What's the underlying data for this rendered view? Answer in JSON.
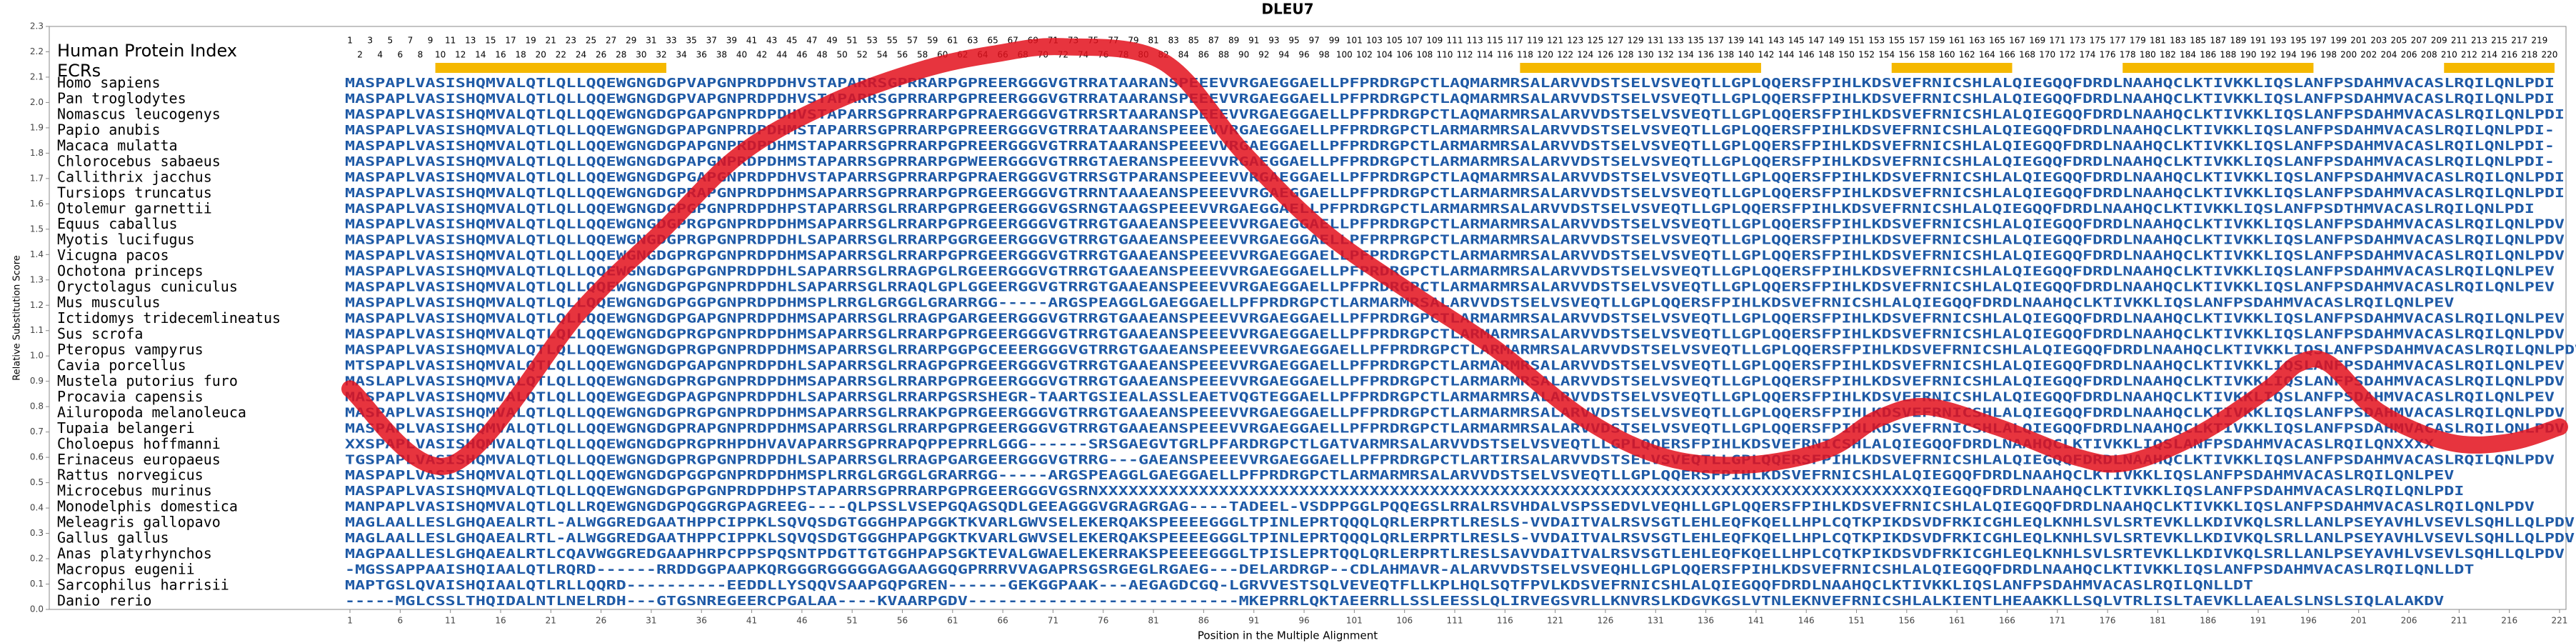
{
  "chart_data": {
    "type": "line",
    "title": "DLEU7",
    "ylabel": "Relative Substitution Score",
    "xlabel": "Position in the Multiple Alignment",
    "index_label": "Human Protein Index",
    "ecr_label": "ECRs",
    "ylim": [
      0,
      2.3
    ],
    "yticks": [
      {
        "value": 0,
        "label": "0.0"
      },
      0.1,
      0.2,
      0.3,
      0.4,
      0.5,
      0.6,
      0.7,
      0.8,
      0.9,
      {
        "value": 1,
        "label": "1.0"
      },
      1.1,
      1.2,
      1.3,
      1.4,
      1.5,
      1.6,
      1.7,
      1.8,
      1.9,
      {
        "value": 2,
        "label": "2.0"
      },
      2.1,
      2.2,
      2.3
    ],
    "xlim": [
      0.5,
      221.5
    ],
    "xticks": [
      1,
      6,
      11,
      16,
      21,
      26,
      31,
      36,
      41,
      46,
      51,
      56,
      61,
      66,
      71,
      76,
      81,
      86,
      91,
      96,
      101,
      106,
      111,
      116,
      121,
      126,
      131,
      136,
      141,
      146,
      151,
      156,
      161,
      166,
      171,
      176,
      181,
      186,
      191,
      196,
      201,
      206,
      211,
      216,
      221
    ],
    "color": "#e3101c",
    "x": [
      1,
      11,
      24,
      32,
      40,
      49,
      58,
      65,
      72,
      82,
      90,
      98,
      107,
      115,
      124,
      132,
      140,
      148,
      153,
      158,
      165,
      173,
      178,
      185,
      192,
      195,
      198,
      203,
      210,
      216,
      221
    ],
    "values": [
      0.87,
      0.57,
      1.18,
      1.49,
      1.8,
      2.0,
      2.13,
      2.19,
      2.22,
      2.16,
      1.8,
      1.49,
      1.24,
      1.03,
      0.75,
      0.6,
      0.57,
      0.63,
      0.75,
      0.8,
      0.72,
      0.6,
      0.58,
      0.69,
      0.87,
      0.97,
      0.97,
      0.78,
      0.66,
      0.66,
      0.72
    ],
    "ecr_color": "#f5b800",
    "ecrs": [
      [
        10,
        32
      ],
      [
        118,
        141
      ],
      [
        155,
        166
      ],
      [
        178,
        196
      ],
      [
        210,
        220
      ]
    ],
    "human_index": [
      1,
      2,
      3,
      4,
      5,
      6,
      7,
      8,
      9,
      10,
      11,
      12,
      13,
      14,
      15,
      16,
      17,
      18,
      19,
      20,
      21,
      22,
      23,
      24,
      25,
      26,
      27,
      28,
      29,
      30,
      31,
      32,
      33,
      34,
      35,
      36,
      37,
      38,
      39,
      40,
      41,
      42,
      43,
      44,
      45,
      46,
      47,
      48,
      49,
      50,
      51,
      52,
      53,
      54,
      55,
      56,
      57,
      58,
      59,
      60,
      61,
      62,
      63,
      64,
      65,
      66,
      67,
      68,
      69,
      70,
      71,
      72,
      73,
      74,
      75,
      76,
      77,
      78,
      79,
      80,
      81,
      82,
      83,
      84,
      85,
      86,
      87,
      88,
      89,
      90,
      91,
      92,
      93,
      94,
      95,
      96,
      97,
      98,
      99,
      100,
      101,
      102,
      103,
      104,
      105,
      106,
      107,
      108,
      109,
      110,
      111,
      112,
      113,
      114,
      115,
      116,
      117,
      118,
      119,
      120,
      121,
      122,
      123,
      124,
      125,
      126,
      127,
      128,
      129,
      130,
      131,
      132,
      133,
      134,
      135,
      136,
      137,
      138,
      139,
      140,
      141,
      142,
      143,
      144,
      145,
      146,
      147,
      148,
      149,
      150,
      151,
      152,
      153,
      154,
      155,
      156,
      157,
      158,
      159,
      160,
      161,
      162,
      163,
      164,
      165,
      166,
      167,
      168,
      169,
      170,
      171,
      172,
      173,
      174,
      175,
      176,
      177,
      178,
      179,
      180,
      181,
      182,
      183,
      184,
      185,
      186,
      187,
      188,
      189,
      190,
      191,
      192,
      193,
      194,
      195,
      196,
      197,
      198,
      199,
      200,
      201,
      202,
      203,
      204,
      205,
      206,
      207,
      208,
      209,
      210,
      211,
      212,
      213,
      214,
      215,
      216,
      217,
      218,
      219,
      220
    ],
    "sequence_color": "#1f5aa6",
    "rows": [
      {
        "species": "Homo sapiens",
        "sequence": "MASPAPLVASISHQMVALQTLQLLQQEWGNGDGPVAPGNPRDPDHVSTAPARRSGPRRARPGPREERGGGVGTRRATAARANSPEEEVVRGAEGGAELLPFPRDRGPCTLAQMARMRSALARVVDSTSELVSVEQTLLGPLQQERSFPIHLKDSVEFRNICSHLALQIEGQQFDRDLNAAHQCLKTIVKKLIQSLANFPSDAHMVACASLRQILQNLPDI"
      },
      {
        "species": "Pan troglodytes",
        "sequence": "MASPAPLVASISHQMVALQTLQLLQQEWGNGDGPVAPGNPRDPDHVSTAPARRSGPRRARPGPREERGGGVGTRRATAARANSPEEEVVRGAEGGAELLPFPRDRGPCTLAQMARMRSALARVVDSTSELVSVEQTLLGPLQQERSFPIHLKDSVEFRNICSHLALQIEGQQFDRDLNAAHQCLKTIVKKLIQSLANFPSDAHMVACASLRQILQNLPDI"
      },
      {
        "species": "Nomascus leucogenys",
        "sequence": "MASPAPLVASISHQMVALQTLQLLQQEWGNGDGPGAPGNPRDPDHVSTAPARRSGPRRARPGPRAERGGGVGTRRSRTAARANSPEEEVVRGAEGGAELLPFPRDRGPCTLAQMARMRSALARVVDSTSELVSVEQTLLGPLQQERSFPIHLKDSVEFRNICSHLALQIEGQQFDRDLNAAHQCLKTIVKKLIQSLANFPSDAHMVACASLRQILQNLPDI"
      },
      {
        "species": "Papio anubis",
        "sequence": "MASPAPLVASISHQMVALQTLQLLQQEWGNGDGPAPGNPRDPDHMSTAPARRSGPRRARPGPREERGGGVGTRRATAARANSPEEEVVRGAEGGAELLPFPRDRGPCTLARMARMRSALARVVDSTSELVSVEQTLLGPLQQERSFPIHLKDSVEFRNICSHLALQIEGQQFDRDLNAAHQCLKTIVKKLIQSLANFPSDAHMVACASLRQILQNLPDI-"
      },
      {
        "species": "Macaca mulatta",
        "sequence": "MASPAPLVASISHQMVALQTLQLLQQEWGNGDGPAPGNPRDPDHMSTAPARRSGPRRARPGPREERGGGVGTRRATAARANSPEEEVVRGAEGGAELLPFPRDRGPCTLARMARMRSALARVVDSTSELVSVEQTLLGPLQQERSFPIHLKDSVEFRNICSHLALQIEGQQFDRDLNAAHQCLKTIVKKLIQSLANFPSDAHMVACASLRQILQNLPDI-"
      },
      {
        "species": "Chlorocebus sabaeus",
        "sequence": "MASPAPLVASISHQMVALQTLQLLQQEWGNGDGPAPGNPRDPDHMSTAPARRSGPRRARPGPWEERGGGVGTRRGTAERANSPEEEVVRGAEGGAELLPFPRDRGPCTLARMARMRSALARVVDSTSELVSVEQTLLGPLQQERSFPIHLKDSVEFRNICSHLALQIEGQQFDRDLNAAHQCLKTIVKKLIQSLANFPSDAHMVACASLRQILQNLPDI-"
      },
      {
        "species": "Callithrix jacchus",
        "sequence": "MASPAPLVASISHQMVALQTLQLLQQEWGNGDGPGAPGNPRDPDHVSTAPARRSGPRRARPGPRAERGGGVGTRRSGTPARANSPEEEVVRGAEGGAELLPFPRDRGPCTLAQMARMRSALARVVDSTSELVSVEQTLLGPLQQERSFPIHLKDSVEFRNICSHLALQIEGQQFDRDLNAAHQCLKTIVKKLIQSLANFPSDAHMVACASLRQILQNLPDI"
      },
      {
        "species": "Tursiops truncatus",
        "sequence": "MASPAPLVASISHQMVALQTLQLLQQEWGNGDGPRAPGNPRDPDHMSAPARRSGPRRARPGPRGEERGGGVGTRRNTAAAEANSPEEEVVRGAEGGAELLPFPRDRGPCTLARMARMRSALARVVDSTSELVSVEQTLLGPLQQERSFPIHLKDSVEFRNICSHLALQIEGQQFDRDLNAAHQCLKTIVKKLIQSLANFPSDAHMVACASLRQILQNLPDI"
      },
      {
        "species": "Otolemur garnettii",
        "sequence": "MASPAPLVASISHQMVALQTLQLLQQEWGNGDGPGPGNPRDPDHPSTAPARRSGLRRARPGPRGEERGGGVGSRNGTAAGSPEEEVVRGAEGGAELLPFPRDRGPCTLARMARMRSALARVVDSTSELVSVEQTLLGPLQQERSFPIHLKDSVEFRNICSHLALQIEGQQFDRDLNAAHQCLKTIVKKLIQSLANFPSDTHMVACASLRQILQNLPDI"
      },
      {
        "species": "Equus caballus",
        "sequence": "MASPAPLVASISHQMVALQTLQLLQQEWGNGDGPRGPGNPRDPDHMSAPARRSGLRRARPGPRGEERGGGVGTRRGTGAAEANSPEEEVVRGAEGGAELLPFPRDRGPCTLARMARMRSALARVVDSTSELVSVEQTLLGPLQQERSFPIHLKDSVEFRNICSHLALQIEGQQFDRDLNAAHQCLKTIVKKLIQSLANFPSDAHMVACASLRQILQNLPDV"
      },
      {
        "species": "Myotis lucifugus",
        "sequence": "MASPAPLVASISHQMVALQTLQLLQQEWGNGDGPRGPGNPRDPDHLSAPARRSGLRRARPGGRGEERGGGVGTRRGTGAAEANSPEEEVVRGAEGGAELLPFPRPRGPCTLARMARMRSALARVVDSTSELVSVEQTLLGPLQQERSFPIHLKDSVEFRNICSHLALQIEGQQFDRDLNAAHQCLKTIVKKLIQSLANFPSDAHMVACASLRQILQNLPDV"
      },
      {
        "species": "Vicugna pacos",
        "sequence": "MASPAPLVASISHQMVALQTLQLLQQEWGNGDGPRGPGNPRDPDHMSAPARRSGLRRARPGPRGEERGGGVGTRRGTGAAEANSPEEEVVRGAEGGAELLPFPRDRGPCTLARMARMRSALARVVDSTSELVSVEQTLLGPLQQERSFPIHLKDSVEFRNICSHLALQIEGQQFDRDLNAAHQCLKTIVKKLIQSLANFPSDAHMVACASLRQILQNLPDV"
      },
      {
        "species": "Ochotona princeps",
        "sequence": "MASPAPLVASISHQMVALQTLQLLQQEWGNGDGPGPGNPRDPDHLSAPARRSGLRRAGPGLRGEERGGGVGTRRGTGAAEANSPEEEVVRGAEGGAELLPFPRDRGPCTLARMARMRSALARVVDSTSELVSVEQTLLGPLQQERSFPIHLKDSVEFRNICSHLALQIEGQQFDRDLNAAHQCLKTIVKKLIQSLANFPSDAHMVACASLRQILQNLPEV"
      },
      {
        "species": "Oryctolagus cuniculus",
        "sequence": "MASPAPLVASISHQMVALQTLQLLQQEWGNGDGPGPGNPRDPDHLSAPARRSGLRRAQLGPLGGEERGGVGTRRGTGAAEANSPEEEVVRGAEGGAELLPFPRDRGPCTLARMARMRSALARVVDSTSELVSVEQTLLGPLQQERSFPIHLKDSVEFRNICSHLALQIEGQQFDRDLNAAHQCLKTIVKKLIQSLANFPSDAHMVACASLRQILQNLPEV"
      },
      {
        "species": "Mus musculus",
        "sequence": "MASPAPLVASISHQMVALQTLQLLQQEWGNGDGPGGPGNPRDPDHMSPLRRGLGRGGLGRARRGG-----ARGSPEAGGLGAEGGAELLPFPRDRGPCTLARMARMRSALARVVDSTSELVSVEQTLLGPLQQERSFPIHLKDSVEFRNICSHLALQIEGQQFDRDLNAAHQCLKTIVKKLIQSLANFPSDAHMVACASLRQILQNLPEV"
      },
      {
        "species": "Ictidomys tridecemlineatus",
        "sequence": "MASPAPLVASISHQMVALQTLQLLQQEWGNGDGPGAPGNPRDPDHMSAPARRSGLRRAGPGARGEERGGGVGTRRGTGAAEANSPEEEVVRGAEGGAELLPFPRDRGPCTLARMARMRSALARVVDSTSELVSVEQTLLGPLQQERSFPIHLKDSVEFRNICSHLALQIEGQQFDRDLNAAHQCLKTIVKKLIQSLANFPSDAHMVACASLRQILQNLPEV"
      },
      {
        "species": "Sus scrofa",
        "sequence": "MASPAPLVASISHQMVALQTLQLLQQEWGNGDGPRGPGNPRDPDHMSAPARRSGLRRARPGPRGEERGGGVGTRRGTGAAEANSPEEEVVRGAEGGAELLPFPRDRGPCTLARMARMRSALARVVDSTSELVSVEQTLLGPLQQERSFPIHLKDSVEFRNICSHLALQIEGQQFDRDLNAAHQCLKTIVKKLIQSLANFPSDAHMVACASLRQILQNLPDV"
      },
      {
        "species": "Pteropus vampyrus",
        "sequence": "MASPAPLVASISHQMVALQTLQLLQQEWGNGDGPRGPGNPRDPDHMSAPARRSGLRRARPGGPGCEEERGGGVGTRRGTGAAEANSPEEEVVRGAEGGAELLPFPRDRGPCTLARMARMRSALARVVDSTSELVSVEQTLLGPLQQERSFPIHLKDSVEFRNICSHLALQIEGQQFDRDLNAAHQCLKTIVKKLIQSLANFPSDAHMVACASLRQILQNLPDV"
      },
      {
        "species": "Cavia porcellus",
        "sequence": "MTSPAPLVASISHQMVALQTLQLLQQEWGNGDGPGAPGNPRDPDHLSAPARRSGLRRAGPGPRGEERGGGVGTRRGTGAAEANSPEEEVVRGAEGGAELLPFPRDRGPCTLARMARMRSALARVVDSTSELVSVEQTLLGPLQQERSFPIHLKDSVEFRNICSHLALQIEGQQFDRDLNAAHQCLKTIVKKLIQSLANFPSDAHMVACASLRQILQNLPEV"
      },
      {
        "species": "Mustela putorius furo",
        "sequence": "MASLAPLVASISHQMVALQTLQLLQQEWGNGDGPRGPGNPRDPDHMSAPARRSGLRRARPGPRGEERGGGVGTRRGTGAAEANSPEEEVVRGAEGGAELLPFPRDRGPCTLARMARMRSALARVVDSTSELVSVEQTLLGPLQQERSFPIHLKDSVEFRNICSHLALQIEGQQFDRDLNAAHQCLKTIVKKLIQSLANFPSDAHMVACASLRQILQNLPDV"
      },
      {
        "species": "Procavia capensis",
        "sequence": "MASPAPLVASISHQMVALQTLQLLQQEWGEGDGPAGPGNPRDPDHLSAPARRSGLRRARPGSRSHEGR-TAARTGSIEALASSLEAETVQGTEGGAELLPFPRDRGPCTLARMARMRSALARVVDSTSELVSVEQTLLGPLQQERSFPIHLKDSVEFRNICSHLALQIEGQQFDRDLNAAHQCLKTIVKKLIQSLANFPSDAHMVACASLRQILQNLPEV"
      },
      {
        "species": "Ailuropoda melanoleuca",
        "sequence": "MASPAPLVASISHQMVALQTLQLLQQEWGNGDGPRGPGNPRDPDHMSAPARRSGLRRAKPGPRGEERGGGVGTRRGTGAAEANSPEEEVVRGAEGGAELLPFPRDRGPCTLARMARMRSALARVVDSTSELVSVEQTLLGPLQQERSFPIHLKDSVEFRNICSHLALQIEGQQFDRDLNAAHQCLKTIVKKLIQSLANFPSDAHMVACASLRQILQNLPDV"
      },
      {
        "species": "Tupaia belangeri",
        "sequence": "MASPAPLVASISHQMVALQTLQLLQQEWGNGDGPRAPGNPRDPDHMSAPARRSGLRRARPGPRGEERGGGVGTRRGTGAAEANSPEEEVVRGAEGGAELLPFPRDRGPCTLARMARMRSALARVVDSTSELVSVEQTLLGPLQQERSFPIHLKDSVEFRNICSHLALQIEGQQFDRDLNAAHQCLKTIVKKLIQSLANFPSDAHMVACASLRQILQNLPDV"
      },
      {
        "species": "Choloepus hoffmanni",
        "sequence": "XXSPAPLVASISHQMVALQTLQLLQQEWGNGDGPRGPRHPDHVAVAPARRSGPRRAPQPPEPRRLGGG------SRSGAEGVTGRLPFARDRGPCTLGATVARMRSALARVVDSTSELVSVEQTLLGPLQQERSFPIHLKDSVEFRNICSHLALQIEGQQFDRDLNAAHQCLKTIVKKLIQSLANFPSDAHMVACASLRQILQNXXXX"
      },
      {
        "species": "Erinaceus europaeus",
        "sequence": "TGSPAPLVASISHQMVALQTLQLLQQEWGNGDGPRGPGNPRDPDHLSAPARRSGLRRAGPGARGEERGGGVGTRRG---GAEANSPEEEVVRGAEGGAELLPFPRDRGPCTLARTIRSALARVVDSTSELVSVEQTLLGPLQQERSFPIHLKDSVEFRNICSHLALQIEGQQFDRDLNAAHQCLKTIVKKLIQSLANFPSDAHMVACASLRQILQNLPDV"
      },
      {
        "species": "Rattus norvegicus",
        "sequence": "MASPAPLVASISHQMVALQTLQLLQQEWGNGDGPGGPGNPRDPDHMSPLRRGLGRGGLGRARRGG-----ARGSPEAGGLGAEGGAELLPFPRDRGPCTLARMARMRSALARVVDSTSELVSVEQTLLGPLQQERSFPIHLKDSVEFRNICSHLALQIEGQQFDRDLNAAHQCLKTIVKKLIQSLANFPSDAHMVACASLRQILQNLPEV"
      },
      {
        "species": "Microcebus murinus",
        "sequence": "MASPAPLVASISHQMVALQTLQLLQQEWGNGDGPGPGNPRDPDHPSTAPARRSGPRRARPGPRGEERGGGVGSRNXXXXXXXXXXXXXXXXXXXXXXXXXXXXXXXXXXXXXXXXXXXXXXXXXXXXXXXXXXXXXXXXXXXXXXXXXXXXXXXXXXQIEGQQFDRDLNAAHQCLKTIVKKLIQSLANFPSDAHMVACASLRQILQNLPDI"
      },
      {
        "species": "Monodelphis domestica",
        "sequence": "MANPAPLVASISHQMVALQTLQLLRQEWGNGDGPQGGRGPAGREEG----QLPSSLVSEPGQAGSQDLGEEAGGGVGRAGRGAG----TADEEL-VSDPPGGLPQQEGSLRRALRSVHDALVSPSSEDVLVEQHLLGPLQQERSFPIHLKDSVEFRNICSHLALQIEGQQFDRDLNAAHQCLKTIVKKLIQSLANFPSDAHMVACASLRQILQNLPDV"
      },
      {
        "species": "Meleagris gallopavo",
        "sequence": "MAGLAALLESLGHQAEALRTL-ALWGGREDGAATHPPCIPPKLSQVQSDGTGGGHPAPGGKTKVARLGWVSELEKERQAKSPEEEEGGGLTPINLEPRTQQQLQRLERPRTLRESLS-VVDAITVALRSVSGTLEHLEQFKQELLHPLCQTKPIKDSVDFRKICGHLEQLKNHLSVLSRTEVKLLKDIVKQLSRLLANLPSEYAVHLVSEVLSQHLLQLPDV"
      },
      {
        "species": "Gallus gallus",
        "sequence": "MAGLAALLESLGHQAEALRTL-ALWGGREDGAATHPPCIPPKLSQVQSDGTGGGHPAPGGKTKVARLGWVSELEKERQAKSPEEEEGGGLTPINLEPRTQQQLQRLERPRTLRESLS-VVDAITVALRSVSGTLEHLEQFKQELLHPLCQTKPIKDSVDFRKICGHLEQLKNHLSVLSRTEVKLLKDIVKQLSRLLANLPSEYAVHLVSEVLSQHLLQLPDV"
      },
      {
        "species": "Anas platyrhynchos",
        "sequence": "MAGPAALLESLGHQAEALRTLCQAVWGGREDGAAPHRPCPPSPQSNTPDGTTGTGGHPAPSGKTEVALGWAELEKERRAKSPEEEEGGGLTPISLEPRTQQLQRLERPRTLRESLSAVVDAITVALRSVSGTLEHLEQFKQELLHPLCQTKPIKDSVDFRKICGHLEQLKNHLSVLSRTEVKLLKDIVKQLSRLLANLPSEYAVHLVSEVLSQHLLQLPDV"
      },
      {
        "species": "Macropus eugenii",
        "sequence": "-MGSSAPPAAISHQIAALQTLRQRD------RRDDGGPAAPKQRGGGRGGGGGAGGAAGGQGPRRRVVAGAPRSGSRGEGLRGAEG---DELARDRGP--CDLAHMAVR-ALARVVDSTSELVSVEQHLLGPLQQERSFPIHLKDSVEFRNICSHLALQIEGQQFDRDLNAAHQCLKTIVKKLIQSLANFPSDAHMVACASLRQILQNLLDT"
      },
      {
        "species": "Sarcophilus harrisii",
        "sequence": "MAPTGSLQVAISHQIAALQTLRLLQQRD----------EEDDLLYSQQVSAAPGQPGREN------GEKGGPAAK---AEGAGDCGQ-LGRVVESTSQLVEVEQTFLLKPLHQLSQTFPVLKDSVEFRNICSHLALQIEGQQFDRDLNAAHQCLKTIVKKLIQSLANFPSDAHMVACASLRQILQNLLDT"
      },
      {
        "species": "Danio rerio",
        "sequence": "-----MGLCSSLTHQIDALNTLNELRDH---GTGSNREGEERCPGALAA----KVAARPGDV---------------------------MKEPRRLQKTAEERRLLSSLEESSLQLIRVEGSVRLLKNVRSLKDGVKGSLVTNLEKNVEFRNICSHLALKIENTLHEAAKKLLSQLVTRLISLTAEVKLLAEALSLNSLSIQLALAKDV"
      }
    ]
  }
}
